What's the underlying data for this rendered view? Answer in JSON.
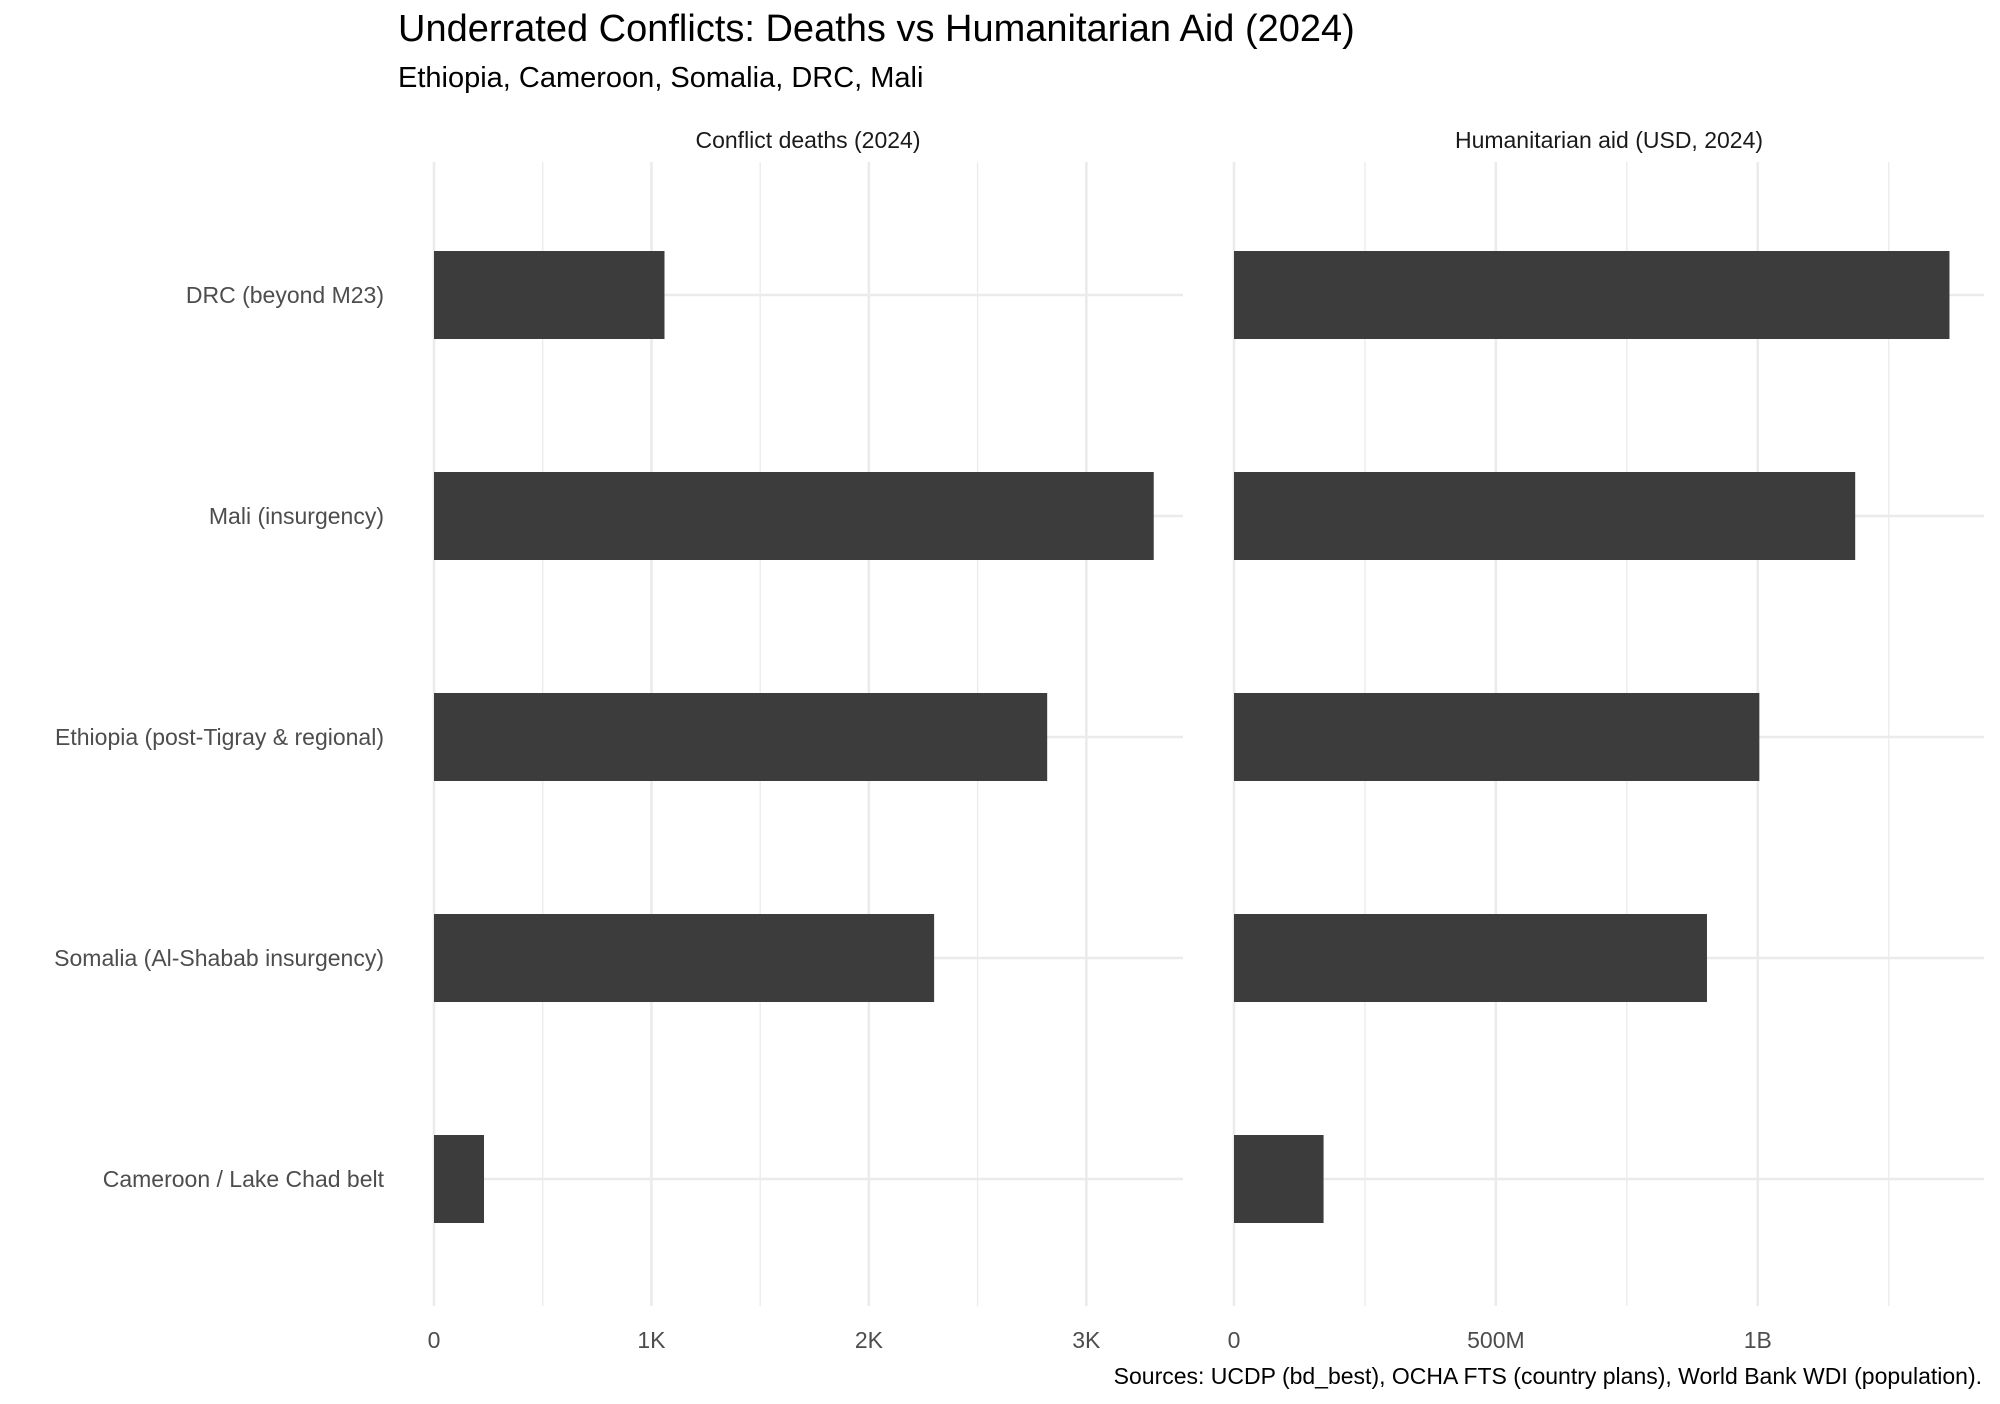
{
  "chart_data": {
    "type": "bar",
    "orientation": "horizontal",
    "title": "Underrated Conflicts: Deaths vs Humanitarian Aid (2024)",
    "subtitle": "Ethiopia, Cameroon, Somalia, DRC, Mali",
    "caption": "Sources: UCDP (bd_best), OCHA FTS (country plans), World Bank WDI (population).",
    "categories": [
      "DRC (beyond M23)",
      "Mali (insurgency)",
      "Ethiopia (post-Tigray & regional)",
      "Somalia (Al-Shabab insurgency)",
      "Cameroon / Lake Chad belt"
    ],
    "bar_color": "#3c3c3c",
    "grid_color": "#ebebeb",
    "grid": true,
    "panels": [
      {
        "strip_label": "Conflict deaths (2024)",
        "values": [
          1060,
          3310,
          2820,
          2300,
          230
        ],
        "xlim": [
          0,
          3440
        ],
        "ticks": [
          0,
          1000,
          2000,
          3000
        ],
        "tick_labels": [
          "0",
          "1K",
          "2K",
          "3K"
        ],
        "minor_ticks": [
          500,
          1500,
          2500
        ]
      },
      {
        "strip_label": "Humanitarian aid (USD, 2024)",
        "values": [
          1366000000,
          1186000000,
          1003000000,
          903000000,
          171000000
        ],
        "xlim": [
          0,
          1430000000
        ],
        "ticks": [
          0,
          500000000,
          1000000000
        ],
        "tick_labels": [
          "0",
          "500M",
          "1B"
        ],
        "minor_ticks": [
          250000000,
          750000000,
          1250000000
        ]
      }
    ]
  }
}
